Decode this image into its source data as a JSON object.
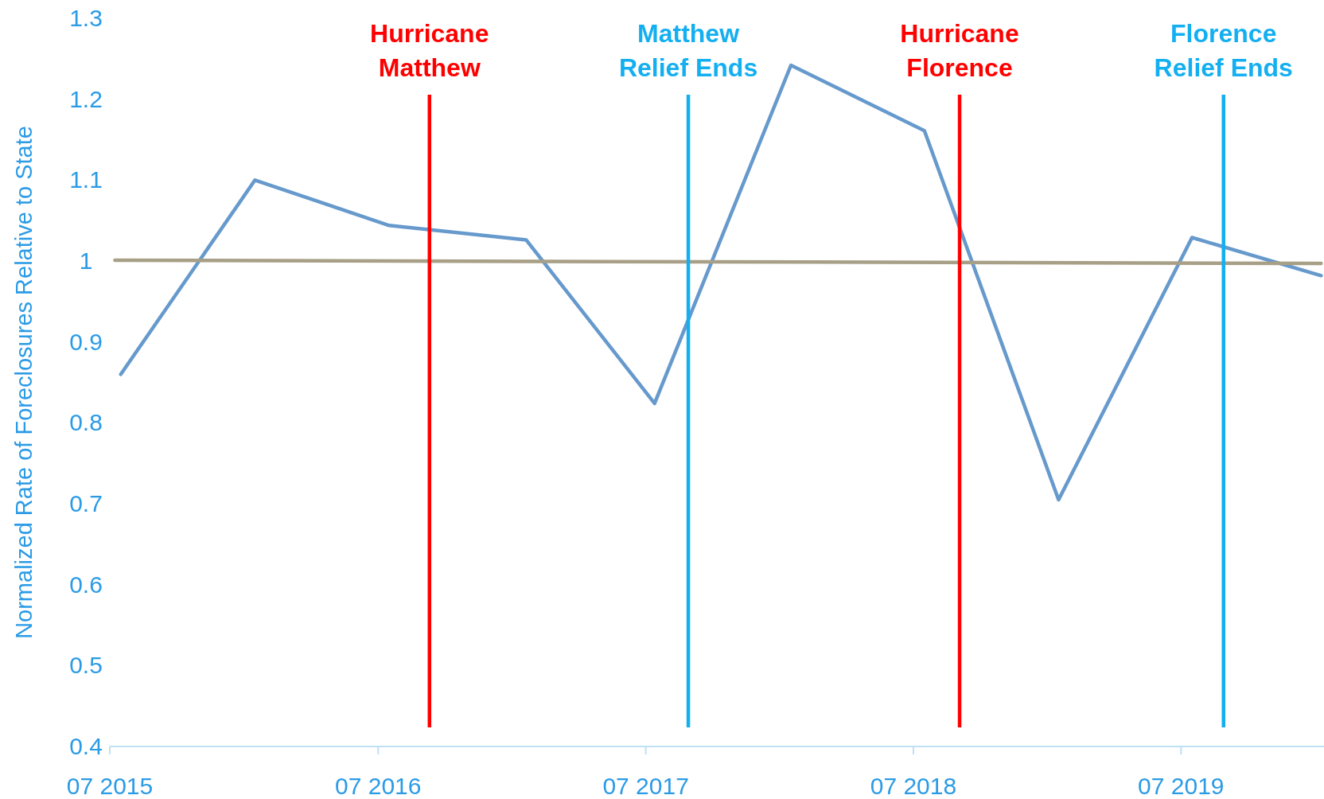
{
  "chart_data": {
    "type": "line",
    "ylabel": "Normalized Rate of Foreclosures Relative to State",
    "xlim": [
      "2015-07-01",
      "2020-01-12"
    ],
    "ylim": [
      0.4,
      1.3
    ],
    "xticks": [
      {
        "value": "2015-07-01",
        "label": "07 2015"
      },
      {
        "value": "2016-07-01",
        "label": "07 2016"
      },
      {
        "value": "2017-07-01",
        "label": "07 2017"
      },
      {
        "value": "2018-07-01",
        "label": "07 2018"
      },
      {
        "value": "2019-07-01",
        "label": "07 2019"
      }
    ],
    "yticks": [
      0.4,
      0.5,
      0.6,
      0.7,
      0.8,
      0.9,
      1,
      1.1,
      1.2,
      1.3
    ],
    "series": [
      {
        "color": "#6699cc",
        "x": [
          "2015-07-16",
          "2016-01-15",
          "2016-07-16",
          "2017-01-19",
          "2017-07-13",
          "2018-01-15",
          "2018-07-16",
          "2019-01-15",
          "2019-07-16",
          "2020-01-08"
        ],
        "values": [
          0.86,
          1.1,
          1.044,
          1.026,
          0.824,
          1.242,
          1.161,
          0.705,
          1.029,
          0.982
        ]
      },
      {
        "color": "#a89f87",
        "x": [
          "2015-07-08",
          "2020-01-08"
        ],
        "values": [
          1.001,
          0.997
        ]
      }
    ],
    "ref_lines": [
      {
        "axis": "x",
        "value": "2016-09-09",
        "label": "Hurricane\nMatthew",
        "color": "#ff0000"
      },
      {
        "axis": "x",
        "value": "2017-08-28",
        "label": "Matthew\nRelief Ends",
        "color": "#13aff0"
      },
      {
        "axis": "x",
        "value": "2018-09-02",
        "label": "Hurricane\nFlorence",
        "color": "#ff0000"
      },
      {
        "axis": "x",
        "value": "2019-08-28",
        "label": "Florence\nRelief Ends",
        "color": "#13aff0"
      }
    ],
    "grid": false
  }
}
